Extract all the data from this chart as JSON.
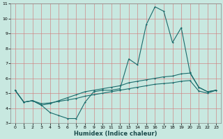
{
  "title": "",
  "xlabel": "Humidex (Indice chaleur)",
  "ylabel": "",
  "background_color": "#c8e8e0",
  "grid_color_major": "#e8a0a0",
  "grid_color_minor": "#e0c8c8",
  "line_color": "#1a6b6b",
  "xlim": [
    -0.5,
    23.5
  ],
  "ylim": [
    3,
    11
  ],
  "x_ticks": [
    0,
    1,
    2,
    3,
    4,
    5,
    6,
    7,
    8,
    9,
    10,
    11,
    12,
    13,
    14,
    15,
    16,
    17,
    18,
    19,
    20,
    21,
    22,
    23
  ],
  "y_ticks": [
    3,
    4,
    5,
    6,
    7,
    8,
    9,
    10,
    11
  ],
  "line1_x": [
    0,
    1,
    2,
    3,
    4,
    5,
    6,
    7,
    8,
    9,
    10,
    11,
    12,
    13,
    14,
    15,
    16,
    17,
    18,
    19,
    20,
    21,
    22,
    23
  ],
  "line1_y": [
    5.2,
    4.4,
    4.5,
    4.2,
    3.7,
    3.5,
    3.3,
    3.3,
    4.4,
    5.1,
    5.2,
    5.2,
    5.3,
    7.3,
    6.9,
    9.6,
    10.8,
    10.5,
    8.4,
    9.4,
    6.4,
    5.4,
    5.1,
    5.2
  ],
  "line2_x": [
    0,
    1,
    2,
    3,
    4,
    5,
    6,
    7,
    8,
    9,
    10,
    11,
    12,
    13,
    14,
    15,
    16,
    17,
    18,
    19,
    20,
    21,
    22,
    23
  ],
  "line2_y": [
    5.2,
    4.4,
    4.5,
    4.2,
    4.3,
    4.5,
    4.7,
    4.9,
    5.1,
    5.2,
    5.3,
    5.4,
    5.5,
    5.7,
    5.8,
    5.9,
    6.0,
    6.1,
    6.15,
    6.3,
    6.35,
    5.4,
    5.1,
    5.2
  ],
  "line3_x": [
    0,
    1,
    2,
    3,
    4,
    5,
    6,
    7,
    8,
    9,
    10,
    11,
    12,
    13,
    14,
    15,
    16,
    17,
    18,
    19,
    20,
    21,
    22,
    23
  ],
  "line3_y": [
    5.2,
    4.4,
    4.5,
    4.3,
    4.35,
    4.45,
    4.55,
    4.65,
    4.8,
    4.9,
    5.0,
    5.1,
    5.2,
    5.3,
    5.4,
    5.5,
    5.6,
    5.65,
    5.7,
    5.8,
    5.85,
    5.15,
    5.0,
    5.2
  ],
  "xlabel_fontsize": 6,
  "tick_fontsize": 4.5,
  "linewidth": 0.8,
  "markersize": 2.0
}
